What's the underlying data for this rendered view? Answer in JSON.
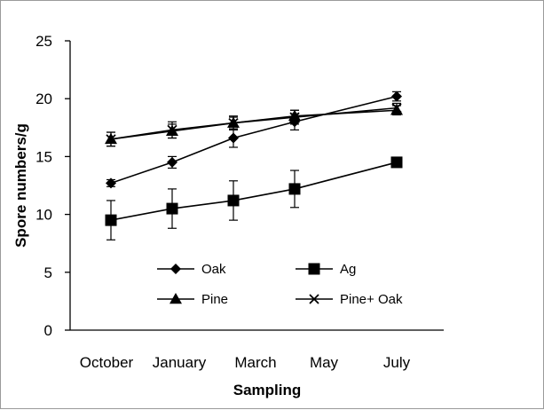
{
  "chart_data": {
    "type": "line",
    "title": "",
    "xlabel": "Sampling",
    "ylabel": "Spore numbers/g",
    "categories": [
      "October",
      "January",
      "March",
      "May",
      "July"
    ],
    "ylim": [
      0,
      25
    ],
    "yticks": [
      0,
      5,
      10,
      15,
      20,
      25
    ],
    "grid": false,
    "legend": "inside-lower-center, two columns",
    "series": [
      {
        "name": "Oak",
        "marker": "diamond",
        "color": "#000000",
        "values": [
          12.7,
          14.5,
          16.6,
          18.0,
          20.2
        ],
        "errors": [
          0.3,
          0.5,
          0.8,
          0.7,
          0.4
        ]
      },
      {
        "name": "Ag",
        "marker": "square",
        "color": "#000000",
        "values": [
          9.5,
          10.5,
          11.2,
          12.2,
          14.5
        ],
        "errors": [
          1.7,
          1.7,
          1.7,
          1.6,
          0.3
        ]
      },
      {
        "name": "Pine",
        "marker": "triangle",
        "color": "#000000",
        "values": [
          16.5,
          17.2,
          17.9,
          18.5,
          19.0
        ],
        "errors": [
          0.6,
          0.6,
          0.5,
          0.5,
          0.4
        ]
      },
      {
        "name": "Pine+ Oak",
        "marker": "x",
        "color": "#000000",
        "values": [
          16.5,
          17.3,
          17.9,
          18.4,
          19.2
        ],
        "errors": [
          0.6,
          0.7,
          0.6,
          0.6,
          0.4
        ]
      }
    ]
  }
}
